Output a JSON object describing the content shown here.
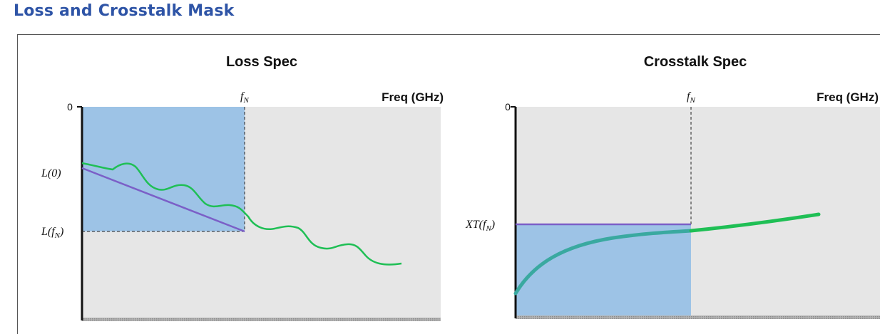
{
  "page": {
    "title": "Loss and Crosstalk Mask"
  },
  "loss_panel": {
    "title": "Loss Spec",
    "x_axis_label": "Freq (GHz)",
    "zero_label": "0",
    "fn_label_main": "f",
    "fn_label_sub": "N",
    "l0_label": "L(0)",
    "lfn_label_main": "L(f",
    "lfn_label_sub": "N",
    "lfn_label_close": ")"
  },
  "crosstalk_panel": {
    "title": "Crosstalk Spec",
    "x_axis_label": "Freq (GHz)",
    "zero_label": "0",
    "fn_label_main": "f",
    "fn_label_sub": "N",
    "xt_label_main": "XT(f",
    "xt_label_sub": "N",
    "xt_label_close": ")"
  },
  "colors": {
    "title": "#2e54a6",
    "plot_background": "#e6e6e6",
    "mask_fill": "#9dc3e6",
    "limit_line": "#7b5fc7",
    "measured_curve": "#1fbf55",
    "measured_curve_in_mask": "#3aa9a0"
  }
}
